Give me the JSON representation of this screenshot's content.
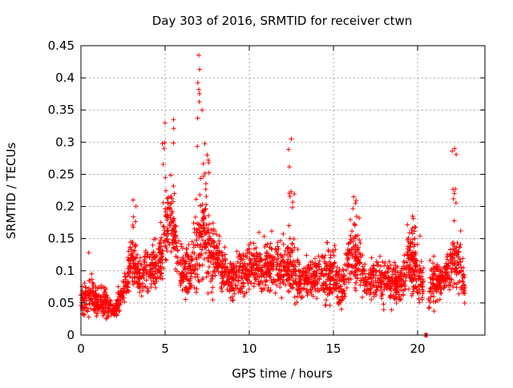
{
  "chart_data": {
    "type": "scatter",
    "title": "Day 303 of 2016, SRMTID for receiver ctwn",
    "xlabel": "GPS time / hours",
    "ylabel": "SRMTID / TECUs",
    "xlim": [
      0,
      24
    ],
    "ylim": [
      0,
      0.45
    ],
    "xticks": [
      0,
      5,
      10,
      15,
      20
    ],
    "yticks": [
      0,
      0.05,
      0.1,
      0.15,
      0.2,
      0.25,
      0.3,
      0.35,
      0.4,
      0.45
    ],
    "ytick_labels": [
      "0",
      "0.05",
      "0.1",
      "0.15",
      "0.2",
      "0.25",
      "0.3",
      "0.35",
      "0.4",
      "0.45"
    ],
    "grid": true,
    "marker": "+",
    "series_color": "#ff0000",
    "gap_marker": {
      "x": 20.5,
      "y": 0
    },
    "envelope": {
      "description": "dense scatter of SRMTID samples (approx. 2880 epochs); values sampled as x(hours) -> typical range [low, high] and peak spikes",
      "x": [
        0,
        0.5,
        1,
        1.5,
        2,
        2.5,
        3,
        3.5,
        4,
        4.5,
        5,
        5.25,
        5.5,
        6,
        6.5,
        7,
        7.25,
        7.5,
        8,
        8.5,
        9,
        9.5,
        10,
        10.5,
        11,
        11.5,
        12,
        12.5,
        13,
        13.5,
        14,
        14.5,
        15,
        15.5,
        16,
        16.5,
        17,
        17.5,
        18,
        18.5,
        19,
        19.5,
        20,
        20.5,
        21,
        21.5,
        22,
        22.5,
        22.8
      ],
      "low": [
        0.02,
        0.02,
        0.02,
        0.02,
        0.02,
        0.04,
        0.05,
        0.05,
        0.05,
        0.05,
        0.07,
        0.12,
        0.1,
        0.05,
        0.04,
        0.04,
        0.05,
        0.05,
        0.05,
        0.05,
        0.04,
        0.05,
        0.05,
        0.05,
        0.05,
        0.05,
        0.05,
        0.04,
        0.04,
        0.04,
        0.04,
        0.03,
        0.03,
        0.02,
        0.05,
        0.05,
        0.04,
        0.04,
        0.03,
        0.03,
        0.04,
        0.04,
        0.04,
        0.02,
        0.03,
        0.05,
        0.05,
        0.05,
        0.04
      ],
      "high": [
        0.07,
        0.1,
        0.07,
        0.07,
        0.05,
        0.09,
        0.16,
        0.12,
        0.14,
        0.15,
        0.2,
        0.25,
        0.2,
        0.13,
        0.15,
        0.2,
        0.25,
        0.18,
        0.17,
        0.13,
        0.12,
        0.14,
        0.15,
        0.15,
        0.15,
        0.14,
        0.15,
        0.14,
        0.12,
        0.12,
        0.13,
        0.14,
        0.15,
        0.1,
        0.17,
        0.15,
        0.1,
        0.14,
        0.12,
        0.12,
        0.11,
        0.17,
        0.13,
        0.1,
        0.12,
        0.12,
        0.15,
        0.15,
        0.1
      ],
      "peaks": [
        {
          "x": 3.1,
          "y": 0.21
        },
        {
          "x": 5.0,
          "y": 0.33
        },
        {
          "x": 5.5,
          "y": 0.335
        },
        {
          "x": 7.0,
          "y": 0.435
        },
        {
          "x": 7.2,
          "y": 0.35
        },
        {
          "x": 7.5,
          "y": 0.28
        },
        {
          "x": 12.5,
          "y": 0.305
        },
        {
          "x": 16.2,
          "y": 0.215
        },
        {
          "x": 19.7,
          "y": 0.185
        },
        {
          "x": 22.2,
          "y": 0.29
        }
      ]
    }
  }
}
